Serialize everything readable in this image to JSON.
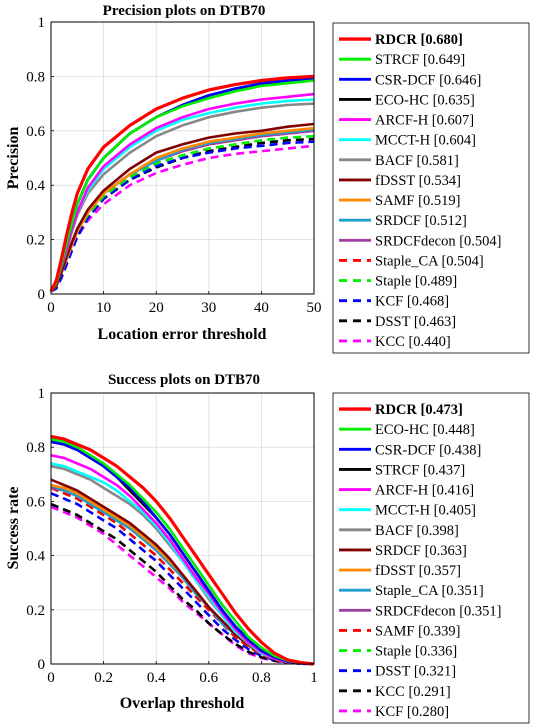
{
  "chart_data": [
    {
      "type": "line",
      "title": "Precision plots on DTB70",
      "xlabel": "Location error threshold",
      "ylabel": "Precision",
      "xlim": [
        0,
        50
      ],
      "ylim": [
        0,
        1
      ],
      "xticks": [
        "0",
        "10",
        "20",
        "30",
        "40",
        "50"
      ],
      "yticks": [
        "0",
        "0.2",
        "0.4",
        "0.6",
        "0.8",
        "1"
      ],
      "legend_position": "outside-right",
      "x": [
        0,
        1,
        2,
        3,
        4,
        5,
        7,
        10,
        15,
        20,
        25,
        30,
        35,
        40,
        45,
        50
      ],
      "series": [
        {
          "name": "RDCR [0.680]",
          "color": "#ff0000",
          "dash": "solid",
          "bold": true,
          "values": [
            0.01,
            0.05,
            0.13,
            0.22,
            0.3,
            0.37,
            0.46,
            0.54,
            0.62,
            0.68,
            0.72,
            0.75,
            0.77,
            0.785,
            0.795,
            0.8
          ]
        },
        {
          "name": "STRCF [0.649]",
          "color": "#00ee00",
          "dash": "solid",
          "values": [
            0.01,
            0.04,
            0.11,
            0.19,
            0.26,
            0.33,
            0.42,
            0.5,
            0.59,
            0.65,
            0.69,
            0.72,
            0.745,
            0.765,
            0.775,
            0.785
          ]
        },
        {
          "name": "CSR-DCF [0.646]",
          "color": "#0000ff",
          "dash": "solid",
          "values": [
            0.01,
            0.04,
            0.11,
            0.19,
            0.26,
            0.33,
            0.42,
            0.5,
            0.59,
            0.65,
            0.695,
            0.73,
            0.755,
            0.775,
            0.785,
            0.79
          ]
        },
        {
          "name": "ECO-HC [0.635]",
          "color": "#000000",
          "dash": "solid",
          "values": [
            0.01,
            0.04,
            0.11,
            0.19,
            0.26,
            0.33,
            0.42,
            0.5,
            0.59,
            0.65,
            0.695,
            0.73,
            0.755,
            0.77,
            0.785,
            0.795
          ]
        },
        {
          "name": "ARCF-H [0.607]",
          "color": "#ff00ff",
          "dash": "solid",
          "values": [
            0.01,
            0.04,
            0.1,
            0.17,
            0.24,
            0.3,
            0.39,
            0.47,
            0.55,
            0.61,
            0.65,
            0.68,
            0.7,
            0.715,
            0.725,
            0.735
          ]
        },
        {
          "name": "MCCT-H [0.604]",
          "color": "#00ffff",
          "dash": "solid",
          "values": [
            0.01,
            0.04,
            0.1,
            0.17,
            0.24,
            0.3,
            0.38,
            0.46,
            0.54,
            0.6,
            0.64,
            0.665,
            0.685,
            0.7,
            0.71,
            0.715
          ]
        },
        {
          "name": "BACF [0.581]",
          "color": "#888888",
          "dash": "solid",
          "values": [
            0.01,
            0.04,
            0.1,
            0.16,
            0.23,
            0.29,
            0.37,
            0.44,
            0.52,
            0.58,
            0.62,
            0.65,
            0.67,
            0.685,
            0.695,
            0.7
          ]
        },
        {
          "name": "fDSST [0.534]",
          "color": "#800000",
          "dash": "solid",
          "values": [
            0.01,
            0.03,
            0.08,
            0.14,
            0.19,
            0.24,
            0.31,
            0.38,
            0.46,
            0.52,
            0.55,
            0.575,
            0.59,
            0.6,
            0.615,
            0.625
          ]
        },
        {
          "name": "SAMF [0.519]",
          "color": "#ff8800",
          "dash": "solid",
          "values": [
            0.01,
            0.03,
            0.08,
            0.13,
            0.18,
            0.23,
            0.3,
            0.37,
            0.44,
            0.5,
            0.535,
            0.56,
            0.575,
            0.59,
            0.6,
            0.61
          ]
        },
        {
          "name": "SRDCF [0.512]",
          "color": "#1f9fd0",
          "dash": "solid",
          "values": [
            0.01,
            0.03,
            0.08,
            0.13,
            0.18,
            0.23,
            0.3,
            0.37,
            0.44,
            0.49,
            0.53,
            0.555,
            0.57,
            0.585,
            0.595,
            0.605
          ]
        },
        {
          "name": "SRDCFdecon [0.504]",
          "color": "#a040a0",
          "dash": "solid",
          "values": [
            0.01,
            0.03,
            0.08,
            0.13,
            0.18,
            0.23,
            0.3,
            0.37,
            0.44,
            0.49,
            0.525,
            0.55,
            0.565,
            0.58,
            0.59,
            0.6
          ]
        },
        {
          "name": "Staple_CA [0.504]",
          "color": "#ff0000",
          "dash": "dashed",
          "values": [
            0.01,
            0.03,
            0.08,
            0.13,
            0.18,
            0.23,
            0.3,
            0.37,
            0.44,
            0.49,
            0.525,
            0.55,
            0.565,
            0.58,
            0.59,
            0.6
          ]
        },
        {
          "name": "Staple [0.489]",
          "color": "#00ee00",
          "dash": "dashed",
          "values": [
            0.01,
            0.03,
            0.08,
            0.13,
            0.18,
            0.23,
            0.29,
            0.36,
            0.43,
            0.48,
            0.51,
            0.535,
            0.55,
            0.565,
            0.575,
            0.58
          ]
        },
        {
          "name": "KCF [0.468]",
          "color": "#0000ff",
          "dash": "dashed",
          "values": [
            0.01,
            0.02,
            0.06,
            0.11,
            0.16,
            0.21,
            0.28,
            0.35,
            0.42,
            0.47,
            0.5,
            0.52,
            0.535,
            0.545,
            0.555,
            0.56
          ]
        },
        {
          "name": "DSST [0.463]",
          "color": "#000000",
          "dash": "dashed",
          "values": [
            0.01,
            0.03,
            0.07,
            0.12,
            0.17,
            0.22,
            0.28,
            0.35,
            0.42,
            0.465,
            0.5,
            0.525,
            0.54,
            0.555,
            0.565,
            0.57
          ]
        },
        {
          "name": "KCC [0.440]",
          "color": "#ff00ff",
          "dash": "dashed",
          "values": [
            0.01,
            0.03,
            0.07,
            0.12,
            0.17,
            0.21,
            0.27,
            0.33,
            0.4,
            0.445,
            0.475,
            0.5,
            0.515,
            0.525,
            0.535,
            0.545
          ]
        }
      ]
    },
    {
      "type": "line",
      "title": "Success plots on DTB70",
      "xlabel": "Overlap threshold",
      "ylabel": "Success rate",
      "xlim": [
        0,
        1
      ],
      "ylim": [
        0,
        1
      ],
      "xticks": [
        "0",
        "0.2",
        "0.4",
        "0.6",
        "0.8",
        "1"
      ],
      "yticks": [
        "0",
        "0.2",
        "0.4",
        "0.6",
        "0.8",
        "1"
      ],
      "legend_position": "outside-right",
      "x": [
        0,
        0.05,
        0.1,
        0.15,
        0.2,
        0.25,
        0.3,
        0.35,
        0.4,
        0.45,
        0.5,
        0.55,
        0.6,
        0.65,
        0.7,
        0.75,
        0.8,
        0.85,
        0.9,
        0.95,
        1.0
      ],
      "series": [
        {
          "name": "RDCR [0.473]",
          "color": "#ff0000",
          "dash": "solid",
          "bold": true,
          "values": [
            0.84,
            0.83,
            0.81,
            0.79,
            0.76,
            0.73,
            0.69,
            0.65,
            0.6,
            0.54,
            0.47,
            0.4,
            0.33,
            0.26,
            0.19,
            0.13,
            0.08,
            0.04,
            0.015,
            0.005,
            0.0
          ]
        },
        {
          "name": "ECO-HC [0.448]",
          "color": "#00ee00",
          "dash": "solid",
          "values": [
            0.83,
            0.82,
            0.8,
            0.77,
            0.74,
            0.7,
            0.66,
            0.61,
            0.56,
            0.5,
            0.43,
            0.36,
            0.29,
            0.22,
            0.16,
            0.1,
            0.06,
            0.03,
            0.012,
            0.004,
            0.0
          ]
        },
        {
          "name": "CSR-DCF [0.438]",
          "color": "#0000ff",
          "dash": "solid",
          "values": [
            0.82,
            0.81,
            0.79,
            0.76,
            0.73,
            0.69,
            0.65,
            0.6,
            0.54,
            0.48,
            0.41,
            0.34,
            0.27,
            0.2,
            0.14,
            0.09,
            0.05,
            0.025,
            0.01,
            0.003,
            0.0
          ]
        },
        {
          "name": "STRCF [0.437]",
          "color": "#000000",
          "dash": "solid",
          "values": [
            0.82,
            0.81,
            0.79,
            0.76,
            0.73,
            0.69,
            0.64,
            0.59,
            0.54,
            0.48,
            0.41,
            0.34,
            0.27,
            0.2,
            0.14,
            0.09,
            0.05,
            0.025,
            0.01,
            0.003,
            0.0
          ]
        },
        {
          "name": "ARCF-H [0.416]",
          "color": "#ff00ff",
          "dash": "solid",
          "values": [
            0.77,
            0.76,
            0.74,
            0.72,
            0.69,
            0.66,
            0.62,
            0.57,
            0.52,
            0.46,
            0.39,
            0.32,
            0.26,
            0.19,
            0.13,
            0.08,
            0.045,
            0.02,
            0.008,
            0.002,
            0.0
          ]
        },
        {
          "name": "MCCT-H [0.405]",
          "color": "#00ffff",
          "dash": "solid",
          "values": [
            0.74,
            0.73,
            0.71,
            0.69,
            0.67,
            0.64,
            0.6,
            0.56,
            0.51,
            0.45,
            0.38,
            0.31,
            0.25,
            0.18,
            0.12,
            0.08,
            0.04,
            0.02,
            0.008,
            0.002,
            0.0
          ]
        },
        {
          "name": "BACF [0.398]",
          "color": "#888888",
          "dash": "solid",
          "values": [
            0.73,
            0.72,
            0.7,
            0.68,
            0.65,
            0.62,
            0.59,
            0.55,
            0.5,
            0.44,
            0.38,
            0.31,
            0.24,
            0.18,
            0.12,
            0.075,
            0.04,
            0.02,
            0.008,
            0.002,
            0.0
          ]
        },
        {
          "name": "SRDCF [0.363]",
          "color": "#800000",
          "dash": "solid",
          "values": [
            0.68,
            0.66,
            0.64,
            0.61,
            0.58,
            0.55,
            0.52,
            0.48,
            0.44,
            0.39,
            0.33,
            0.27,
            0.21,
            0.16,
            0.11,
            0.07,
            0.04,
            0.02,
            0.007,
            0.002,
            0.0
          ]
        },
        {
          "name": "fDSST [0.357]",
          "color": "#ff8800",
          "dash": "solid",
          "values": [
            0.66,
            0.65,
            0.63,
            0.6,
            0.57,
            0.54,
            0.51,
            0.47,
            0.43,
            0.38,
            0.33,
            0.27,
            0.21,
            0.16,
            0.11,
            0.07,
            0.04,
            0.02,
            0.007,
            0.002,
            0.0
          ]
        },
        {
          "name": "Staple_CA [0.351]",
          "color": "#1f9fd0",
          "dash": "solid",
          "values": [
            0.66,
            0.64,
            0.62,
            0.59,
            0.56,
            0.53,
            0.5,
            0.46,
            0.42,
            0.37,
            0.32,
            0.26,
            0.21,
            0.15,
            0.11,
            0.07,
            0.04,
            0.02,
            0.007,
            0.002,
            0.0
          ]
        },
        {
          "name": "SRDCFdecon [0.351]",
          "color": "#a040a0",
          "dash": "solid",
          "values": [
            0.65,
            0.64,
            0.62,
            0.59,
            0.56,
            0.53,
            0.5,
            0.46,
            0.42,
            0.37,
            0.32,
            0.26,
            0.21,
            0.15,
            0.11,
            0.07,
            0.04,
            0.02,
            0.007,
            0.002,
            0.0
          ]
        },
        {
          "name": "SAMF [0.339]",
          "color": "#ff0000",
          "dash": "dashed",
          "values": [
            0.65,
            0.63,
            0.61,
            0.58,
            0.55,
            0.52,
            0.48,
            0.44,
            0.4,
            0.35,
            0.3,
            0.25,
            0.2,
            0.15,
            0.1,
            0.065,
            0.035,
            0.017,
            0.006,
            0.002,
            0.0
          ]
        },
        {
          "name": "Staple [0.336]",
          "color": "#00ee00",
          "dash": "dashed",
          "values": [
            0.65,
            0.63,
            0.61,
            0.58,
            0.55,
            0.52,
            0.48,
            0.44,
            0.4,
            0.35,
            0.3,
            0.25,
            0.2,
            0.15,
            0.1,
            0.065,
            0.035,
            0.017,
            0.006,
            0.002,
            0.0
          ]
        },
        {
          "name": "DSST [0.321]",
          "color": "#0000ff",
          "dash": "dashed",
          "values": [
            0.63,
            0.61,
            0.59,
            0.56,
            0.53,
            0.5,
            0.46,
            0.42,
            0.38,
            0.33,
            0.28,
            0.23,
            0.18,
            0.13,
            0.09,
            0.055,
            0.03,
            0.015,
            0.005,
            0.001,
            0.0
          ]
        },
        {
          "name": "KCC [0.291]",
          "color": "#000000",
          "dash": "dashed",
          "values": [
            0.59,
            0.57,
            0.55,
            0.52,
            0.49,
            0.46,
            0.42,
            0.38,
            0.34,
            0.29,
            0.24,
            0.2,
            0.15,
            0.11,
            0.075,
            0.045,
            0.025,
            0.012,
            0.004,
            0.001,
            0.0
          ]
        },
        {
          "name": "KCF [0.280]",
          "color": "#ff00ff",
          "dash": "dashed",
          "values": [
            0.58,
            0.56,
            0.54,
            0.51,
            0.48,
            0.44,
            0.4,
            0.36,
            0.32,
            0.28,
            0.23,
            0.19,
            0.15,
            0.11,
            0.07,
            0.04,
            0.022,
            0.011,
            0.004,
            0.001,
            0.0
          ]
        }
      ]
    }
  ]
}
